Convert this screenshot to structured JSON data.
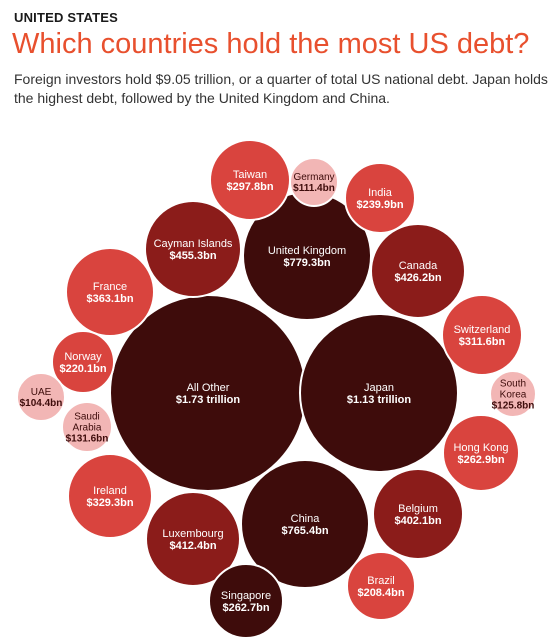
{
  "header": {
    "kicker": "UNITED STATES",
    "title": "Which countries hold the most US debt?",
    "subtitle": "Foreign investors hold $9.05 trillion, or a quarter of total US national debt. Japan holds  the highest debt, followed by the United Kingdom and China."
  },
  "colors": {
    "darkest": "#3e0c0b",
    "dark": "#8b1c1a",
    "medium": "#d9443e",
    "light": "#f2b6b5",
    "text_light": "#ffffff",
    "text_dark": "#3e0c0b"
  },
  "chart_data": {
    "type": "bubble",
    "unit": "US$ billion",
    "series": [
      {
        "name": "All Other",
        "label": "$1.73 trillion",
        "value": 1730,
        "shade": "darkest"
      },
      {
        "name": "Japan",
        "label": "$1.13 trillion",
        "value": 1130,
        "shade": "darkest"
      },
      {
        "name": "United Kingdom",
        "label": "$779.3bn",
        "value": 779.3,
        "shade": "darkest"
      },
      {
        "name": "China",
        "label": "$765.4bn",
        "value": 765.4,
        "shade": "darkest"
      },
      {
        "name": "Cayman Islands",
        "label": "$455.3bn",
        "value": 455.3,
        "shade": "dark"
      },
      {
        "name": "Canada",
        "label": "$426.2bn",
        "value": 426.2,
        "shade": "dark"
      },
      {
        "name": "Luxembourg",
        "label": "$412.4bn",
        "value": 412.4,
        "shade": "dark"
      },
      {
        "name": "Belgium",
        "label": "$402.1bn",
        "value": 402.1,
        "shade": "dark"
      },
      {
        "name": "France",
        "label": "$363.1bn",
        "value": 363.1,
        "shade": "medium"
      },
      {
        "name": "Ireland",
        "label": "$329.3bn",
        "value": 329.3,
        "shade": "medium"
      },
      {
        "name": "Switzerland",
        "label": "$311.6bn",
        "value": 311.6,
        "shade": "medium"
      },
      {
        "name": "Taiwan",
        "label": "$297.8bn",
        "value": 297.8,
        "shade": "medium"
      },
      {
        "name": "Hong Kong",
        "label": "$262.9bn",
        "value": 262.9,
        "shade": "medium"
      },
      {
        "name": "Singapore",
        "label": "$262.7bn",
        "value": 262.7,
        "shade": "darkest"
      },
      {
        "name": "India",
        "label": "$239.9bn",
        "value": 239.9,
        "shade": "medium"
      },
      {
        "name": "Norway",
        "label": "$220.1bn",
        "value": 220.1,
        "shade": "medium"
      },
      {
        "name": "Brazil",
        "label": "$208.4bn",
        "value": 208.4,
        "shade": "medium"
      },
      {
        "name": "Saudi Arabia",
        "label": "$131.6bn",
        "value": 131.6,
        "shade": "light"
      },
      {
        "name": "South Korea",
        "label": "$125.8bn",
        "value": 125.8,
        "shade": "light"
      },
      {
        "name": "Germany",
        "label": "$111.4bn",
        "value": 111.4,
        "shade": "light"
      },
      {
        "name": "UAE",
        "label": "$104.4bn",
        "value": 104.4,
        "shade": "light"
      }
    ]
  }
}
